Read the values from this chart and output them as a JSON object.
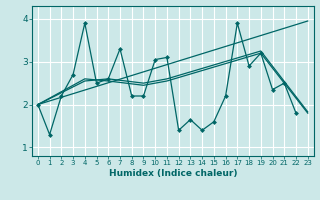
{
  "xlabel": "Humidex (Indice chaleur)",
  "background_color": "#cce8e8",
  "line_color": "#006666",
  "grid_color": "#ffffff",
  "xlim": [
    -0.5,
    23.5
  ],
  "ylim": [
    0.8,
    4.3
  ],
  "yticks": [
    1,
    2,
    3,
    4
  ],
  "xticks": [
    0,
    1,
    2,
    3,
    4,
    5,
    6,
    7,
    8,
    9,
    10,
    11,
    12,
    13,
    14,
    15,
    16,
    17,
    18,
    19,
    20,
    21,
    22,
    23
  ],
  "main_x": [
    0,
    1,
    2,
    3,
    4,
    5,
    6,
    7,
    8,
    9,
    10,
    11,
    12,
    13,
    14,
    15,
    16,
    17,
    18,
    19,
    20,
    21,
    22
  ],
  "main_y": [
    2.0,
    1.3,
    2.2,
    2.7,
    3.9,
    2.5,
    2.6,
    3.3,
    2.2,
    2.2,
    3.05,
    3.1,
    1.4,
    1.65,
    1.4,
    1.6,
    2.2,
    3.9,
    2.9,
    3.2,
    2.35,
    2.5,
    1.8
  ],
  "trend1_x": [
    0,
    23
  ],
  "trend1_y": [
    2.0,
    3.95
  ],
  "trend2_x": [
    0,
    4,
    6,
    9,
    11,
    19,
    23
  ],
  "trend2_y": [
    2.0,
    2.6,
    2.55,
    2.45,
    2.55,
    3.2,
    1.8
  ],
  "trend3_x": [
    0,
    4,
    6,
    9,
    11,
    19,
    23
  ],
  "trend3_y": [
    2.0,
    2.55,
    2.6,
    2.5,
    2.6,
    3.25,
    1.83
  ]
}
